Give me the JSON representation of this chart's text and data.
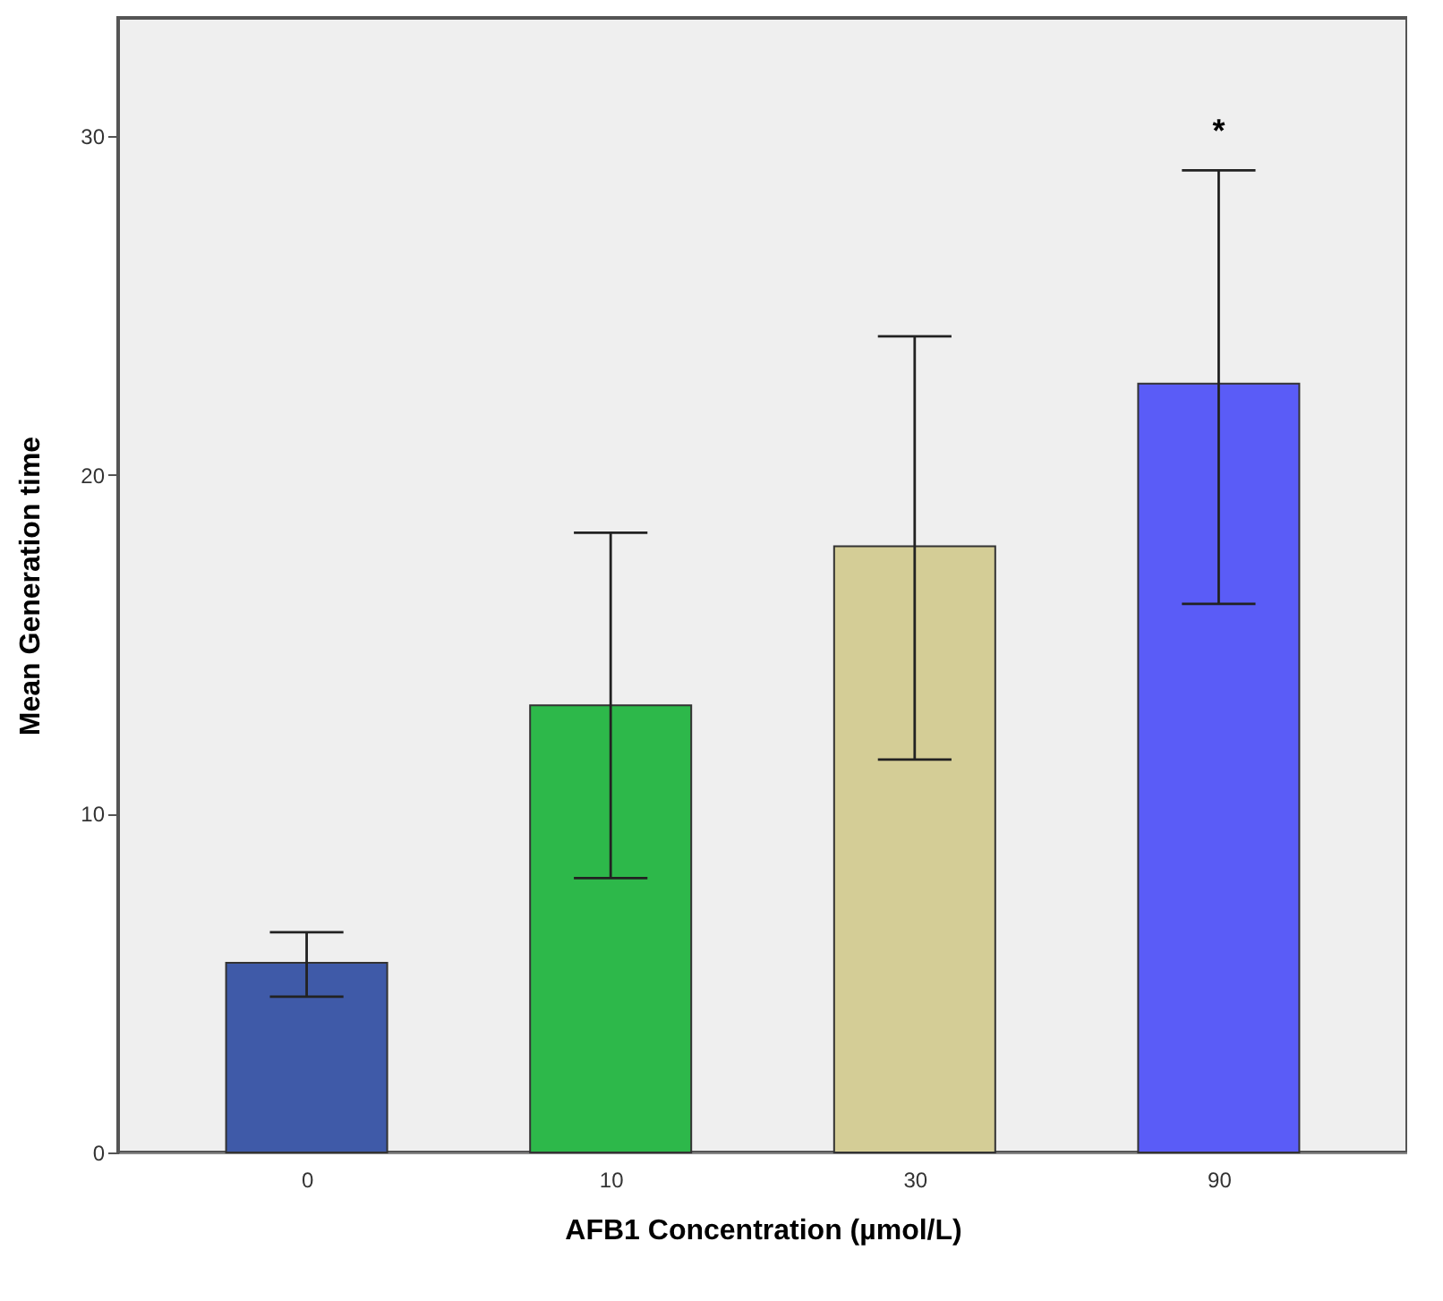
{
  "chart_data": {
    "type": "bar",
    "xlabel": "AFB1 Concentration (µmol/L)",
    "ylabel": "Mean Generation time",
    "categories": [
      "0",
      "10",
      "30",
      "90"
    ],
    "values": [
      5.6,
      13.2,
      17.9,
      22.7
    ],
    "colors": [
      "#3f5aa8",
      "#2db84a",
      "#d4cd96",
      "#5a5cf7"
    ],
    "errors": [
      [
        4.6,
        6.5
      ],
      [
        8.1,
        18.3
      ],
      [
        11.6,
        24.1
      ],
      [
        16.2,
        29.0
      ]
    ],
    "ylim": [
      0,
      33.5
    ],
    "yticks": [
      0,
      10,
      20,
      30
    ],
    "annotations": [
      "*"
    ]
  }
}
